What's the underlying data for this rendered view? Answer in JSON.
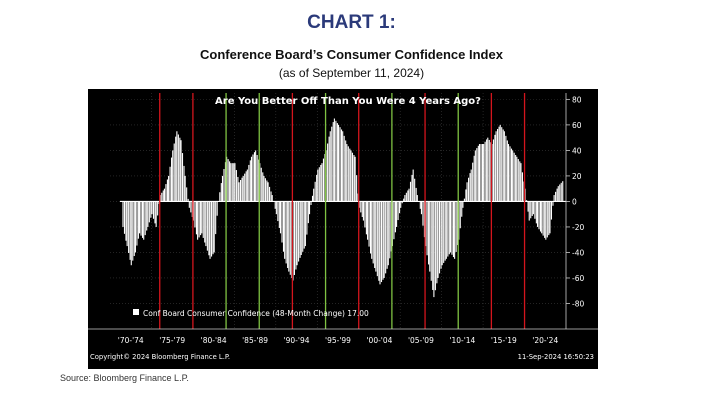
{
  "header": {
    "title": "CHART 1:",
    "subtitle": "Conference Board’s Consumer Confidence Index",
    "subtitle2": "(as of September 11, 2024)"
  },
  "source": "Source: Bloomberg Finance L.P.",
  "chart_data": {
    "type": "bar",
    "title": "Are You Better Off Than You Were 4 Years Ago?",
    "copyright": "Copyright© 2024 Bloomberg Finance L.P.",
    "timestamp": "11-Sep-2024  16:50:23",
    "legend": {
      "label": "Conf Board Consumer Confidence (48-Month Change)",
      "value": "17.00",
      "position": "bottom-left"
    },
    "ylim": [
      -100,
      85
    ],
    "y_ticks": [
      80,
      60,
      40,
      20,
      0,
      -20,
      -40,
      -60,
      -80
    ],
    "y_tick_labels": [
      "80",
      "60",
      "40",
      "20",
      "0",
      "-20",
      "-40",
      "-60",
      "-80"
    ],
    "xlim": [
      1970,
      2025
    ],
    "x_period_labels": [
      {
        "label": "'70-'74",
        "center": 1972.5
      },
      {
        "label": "'75-'79",
        "center": 1977.5
      },
      {
        "label": "'80-'84",
        "center": 1982.5
      },
      {
        "label": "'85-'89",
        "center": 1987.5
      },
      {
        "label": "'90-'94",
        "center": 1992.5
      },
      {
        "label": "'95-'99",
        "center": 1997.5
      },
      {
        "label": "'00-'04",
        "center": 2002.5
      },
      {
        "label": "'05-'09",
        "center": 2007.5
      },
      {
        "label": "'10-'14",
        "center": 2012.5
      },
      {
        "label": "'15-'19",
        "center": 2017.5
      },
      {
        "label": "'20-'24",
        "center": 2022.5
      }
    ],
    "grid": true,
    "colors": {
      "background": "#000000",
      "bars": "#ffffff",
      "election_red": "#d4151d",
      "election_green": "#7fc242",
      "grid": "#3a3a3a",
      "text": "#ffffff",
      "zero_line": "#ffffff"
    },
    "election_lines": [
      {
        "year": 1976,
        "color": "red"
      },
      {
        "year": 1980,
        "color": "red"
      },
      {
        "year": 1984,
        "color": "green"
      },
      {
        "year": 1988,
        "color": "green"
      },
      {
        "year": 1992,
        "color": "red"
      },
      {
        "year": 1996,
        "color": "green"
      },
      {
        "year": 2000,
        "color": "red"
      },
      {
        "year": 2004,
        "color": "green"
      },
      {
        "year": 2008,
        "color": "red"
      },
      {
        "year": 2012,
        "color": "green"
      },
      {
        "year": 2016,
        "color": "red"
      },
      {
        "year": 2020,
        "color": "red"
      }
    ],
    "series": [
      {
        "values": [
          [
            1971.5,
            -20
          ],
          [
            1972.0,
            -35
          ],
          [
            1972.5,
            -50
          ],
          [
            1973.0,
            -40
          ],
          [
            1973.5,
            -25
          ],
          [
            1974.0,
            -30
          ],
          [
            1974.5,
            -20
          ],
          [
            1975.0,
            -10
          ],
          [
            1975.5,
            -20
          ],
          [
            1976.0,
            5
          ],
          [
            1976.5,
            10
          ],
          [
            1977.0,
            20
          ],
          [
            1977.5,
            40
          ],
          [
            1978.0,
            55
          ],
          [
            1978.5,
            48
          ],
          [
            1979.0,
            20
          ],
          [
            1979.5,
            -5
          ],
          [
            1980.0,
            -15
          ],
          [
            1980.5,
            -30
          ],
          [
            1981.0,
            -25
          ],
          [
            1981.5,
            -35
          ],
          [
            1982.0,
            -45
          ],
          [
            1982.5,
            -40
          ],
          [
            1983.0,
            0
          ],
          [
            1983.5,
            20
          ],
          [
            1984.0,
            35
          ],
          [
            1984.5,
            30
          ],
          [
            1985.0,
            30
          ],
          [
            1985.5,
            15
          ],
          [
            1986.0,
            20
          ],
          [
            1986.5,
            25
          ],
          [
            1987.0,
            35
          ],
          [
            1987.5,
            40
          ],
          [
            1988.0,
            30
          ],
          [
            1988.5,
            20
          ],
          [
            1989.0,
            15
          ],
          [
            1989.5,
            5
          ],
          [
            1990.0,
            -10
          ],
          [
            1990.5,
            -25
          ],
          [
            1991.0,
            -45
          ],
          [
            1991.5,
            -55
          ],
          [
            1992.0,
            -62
          ],
          [
            1992.5,
            -50
          ],
          [
            1993.0,
            -42
          ],
          [
            1993.5,
            -35
          ],
          [
            1994.0,
            -10
          ],
          [
            1994.5,
            10
          ],
          [
            1995.0,
            25
          ],
          [
            1995.5,
            30
          ],
          [
            1996.0,
            40
          ],
          [
            1996.5,
            55
          ],
          [
            1997.0,
            65
          ],
          [
            1997.5,
            60
          ],
          [
            1998.0,
            55
          ],
          [
            1998.5,
            45
          ],
          [
            1999.0,
            40
          ],
          [
            1999.5,
            35
          ],
          [
            2000.0,
            -5
          ],
          [
            2000.5,
            -15
          ],
          [
            2001.0,
            -30
          ],
          [
            2001.5,
            -45
          ],
          [
            2002.0,
            -55
          ],
          [
            2002.5,
            -65
          ],
          [
            2003.0,
            -60
          ],
          [
            2003.5,
            -50
          ],
          [
            2004.0,
            -35
          ],
          [
            2004.5,
            -20
          ],
          [
            2005.0,
            -5
          ],
          [
            2005.5,
            5
          ],
          [
            2006.0,
            10
          ],
          [
            2006.5,
            25
          ],
          [
            2007.0,
            5
          ],
          [
            2007.5,
            -10
          ],
          [
            2008.0,
            -35
          ],
          [
            2008.5,
            -55
          ],
          [
            2009.0,
            -75
          ],
          [
            2009.5,
            -60
          ],
          [
            2010.0,
            -50
          ],
          [
            2010.5,
            -45
          ],
          [
            2011.0,
            -40
          ],
          [
            2011.5,
            -45
          ],
          [
            2012.0,
            -30
          ],
          [
            2012.5,
            -5
          ],
          [
            2013.0,
            15
          ],
          [
            2013.5,
            25
          ],
          [
            2014.0,
            40
          ],
          [
            2014.5,
            45
          ],
          [
            2015.0,
            45
          ],
          [
            2015.5,
            50
          ],
          [
            2016.0,
            45
          ],
          [
            2016.5,
            55
          ],
          [
            2017.0,
            60
          ],
          [
            2017.5,
            55
          ],
          [
            2018.0,
            45
          ],
          [
            2018.5,
            40
          ],
          [
            2019.0,
            35
          ],
          [
            2019.5,
            30
          ],
          [
            2020.0,
            10
          ],
          [
            2020.5,
            -15
          ],
          [
            2021.0,
            -10
          ],
          [
            2021.5,
            -20
          ],
          [
            2022.0,
            -25
          ],
          [
            2022.5,
            -30
          ],
          [
            2023.0,
            -25
          ],
          [
            2023.5,
            5
          ],
          [
            2024.0,
            12
          ],
          [
            2024.7,
            17
          ]
        ]
      }
    ]
  }
}
